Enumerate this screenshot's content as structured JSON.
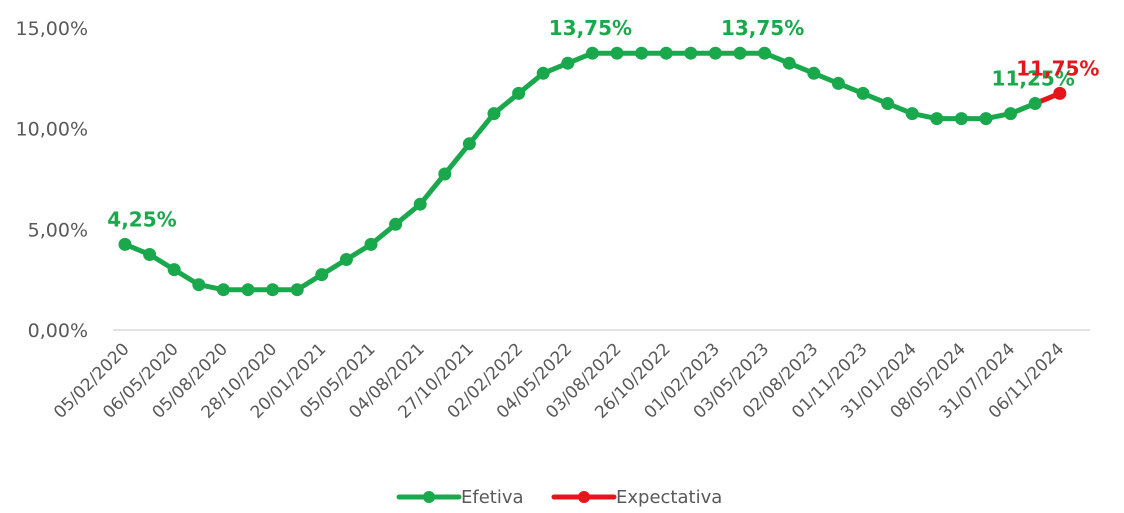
{
  "colors": {
    "efetiva": "#1aa84d",
    "expectativa": "#e8141c",
    "axis_line": "#d9d9d9",
    "text": "#595959"
  },
  "chart_data": {
    "type": "line",
    "title": "",
    "xlabel": "",
    "ylabel": "",
    "ylim": [
      0,
      15
    ],
    "y_ticks": [
      "0,00%",
      "5,00%",
      "10,00%",
      "15,00%"
    ],
    "y_tick_values": [
      0,
      5,
      10,
      15
    ],
    "x_tick_labels": [
      "05/02/2020",
      "06/05/2020",
      "05/08/2020",
      "28/10/2020",
      "20/01/2021",
      "05/05/2021",
      "04/08/2021",
      "27/10/2021",
      "02/02/2022",
      "04/05/2022",
      "03/08/2022",
      "26/10/2022",
      "01/02/2023",
      "03/05/2023",
      "02/08/2023",
      "01/11/2023",
      "31/01/2024",
      "08/05/2024",
      "31/07/2024",
      "06/11/2024"
    ],
    "grid": false,
    "legend_position": "bottom",
    "series": [
      {
        "name": "Efetiva",
        "color": "#1aa84d",
        "values": [
          4.25,
          3.75,
          3.0,
          2.25,
          2.0,
          2.0,
          2.0,
          2.0,
          2.75,
          3.5,
          4.25,
          5.25,
          6.25,
          7.75,
          9.25,
          10.75,
          11.75,
          12.75,
          13.25,
          13.75,
          13.75,
          13.75,
          13.75,
          13.75,
          13.75,
          13.75,
          13.75,
          13.25,
          12.75,
          12.25,
          11.75,
          11.25,
          10.75,
          10.5,
          10.5,
          10.5,
          10.75,
          11.25
        ]
      },
      {
        "name": "Expectativa",
        "color": "#e8141c",
        "values": [
          11.25,
          11.75
        ],
        "start_index": 37
      }
    ],
    "annotations": [
      {
        "text": "4,25%",
        "index": 0,
        "series": "Efetiva",
        "color": "#1aa84d"
      },
      {
        "text": "13,75%",
        "index": 19,
        "series": "Efetiva",
        "color": "#1aa84d"
      },
      {
        "text": "13,75%",
        "index": 26,
        "series": "Efetiva",
        "color": "#1aa84d"
      },
      {
        "text": "11,25%",
        "index": 37,
        "series": "Efetiva",
        "color": "#1aa84d"
      },
      {
        "text": "11,75%",
        "index": 38,
        "series": "Expectativa",
        "color": "#e8141c"
      }
    ]
  }
}
